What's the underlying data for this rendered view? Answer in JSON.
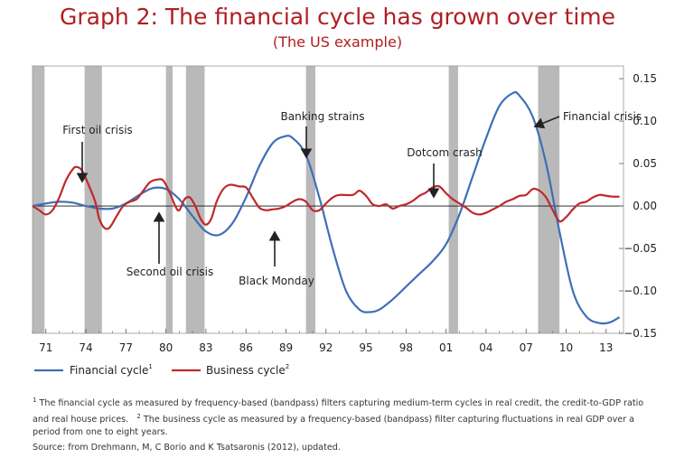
{
  "title": "Graph 2: The financial cycle has grown over time",
  "subtitle": "(The US example)",
  "chart_data": {
    "type": "line",
    "xlim": [
      1970.0,
      2014.3
    ],
    "ylim": [
      -0.15,
      0.165
    ],
    "y_ticks": [
      0.15,
      0.1,
      0.05,
      0.0,
      -0.05,
      -0.1,
      -0.15
    ],
    "y_tick_labels": [
      "0.15",
      "0.10",
      "0.05",
      "0.00",
      "−0.05",
      "−0.10",
      "−0.15"
    ],
    "x_ticks": [
      1971,
      1974,
      1977,
      1980,
      1983,
      1986,
      1989,
      1992,
      1995,
      1998,
      2001,
      2004,
      2007,
      2010,
      2013
    ],
    "x_tick_labels": [
      "71",
      "74",
      "77",
      "80",
      "83",
      "86",
      "89",
      "92",
      "95",
      "98",
      "01",
      "04",
      "07",
      "10",
      "13"
    ],
    "grid": false,
    "legend_position": "bottom-left",
    "recessions": [
      [
        1970.0,
        1970.9
      ],
      [
        1973.9,
        1975.2
      ],
      [
        1980.0,
        1980.5
      ],
      [
        1981.5,
        1982.9
      ],
      [
        1990.5,
        1991.2
      ],
      [
        2001.2,
        2001.9
      ],
      [
        2007.9,
        2009.5
      ]
    ],
    "series": [
      {
        "name": "Financial cycle",
        "footnote_mark": "1",
        "color": "#3e6fb8",
        "points": [
          [
            1970.0,
            0.0
          ],
          [
            1971.0,
            0.003
          ],
          [
            1972.0,
            0.005
          ],
          [
            1973.0,
            0.004
          ],
          [
            1974.0,
            0.0
          ],
          [
            1975.0,
            -0.003
          ],
          [
            1976.0,
            -0.003
          ],
          [
            1977.0,
            0.003
          ],
          [
            1978.0,
            0.013
          ],
          [
            1979.0,
            0.021
          ],
          [
            1980.0,
            0.02
          ],
          [
            1981.0,
            0.008
          ],
          [
            1982.0,
            -0.012
          ],
          [
            1983.0,
            -0.03
          ],
          [
            1984.0,
            -0.034
          ],
          [
            1985.0,
            -0.02
          ],
          [
            1986.0,
            0.01
          ],
          [
            1987.0,
            0.047
          ],
          [
            1988.0,
            0.074
          ],
          [
            1988.9,
            0.082
          ],
          [
            1989.5,
            0.08
          ],
          [
            1990.5,
            0.06
          ],
          [
            1991.5,
            0.01
          ],
          [
            1992.5,
            -0.05
          ],
          [
            1993.5,
            -0.1
          ],
          [
            1994.5,
            -0.122
          ],
          [
            1995.3,
            -0.125
          ],
          [
            1996.0,
            -0.122
          ],
          [
            1997.0,
            -0.11
          ],
          [
            1998.0,
            -0.095
          ],
          [
            1999.0,
            -0.08
          ],
          [
            2000.0,
            -0.065
          ],
          [
            2001.0,
            -0.045
          ],
          [
            2002.0,
            -0.01
          ],
          [
            2003.0,
            0.035
          ],
          [
            2004.0,
            0.08
          ],
          [
            2005.0,
            0.118
          ],
          [
            2006.0,
            0.133
          ],
          [
            2006.5,
            0.13
          ],
          [
            2007.5,
            0.105
          ],
          [
            2008.5,
            0.05
          ],
          [
            2009.5,
            -0.03
          ],
          [
            2010.5,
            -0.1
          ],
          [
            2011.5,
            -0.13
          ],
          [
            2012.5,
            -0.138
          ],
          [
            2013.3,
            -0.137
          ],
          [
            2014.0,
            -0.131
          ]
        ]
      },
      {
        "name": "Business cycle",
        "footnote_mark": "2",
        "color": "#c0282c",
        "points": [
          [
            1970.0,
            0.0
          ],
          [
            1970.5,
            -0.005
          ],
          [
            1971.0,
            -0.01
          ],
          [
            1971.5,
            -0.005
          ],
          [
            1972.0,
            0.01
          ],
          [
            1972.5,
            0.03
          ],
          [
            1973.0,
            0.043
          ],
          [
            1973.3,
            0.046
          ],
          [
            1973.7,
            0.042
          ],
          [
            1974.2,
            0.025
          ],
          [
            1974.7,
            0.005
          ],
          [
            1975.0,
            -0.015
          ],
          [
            1975.4,
            -0.026
          ],
          [
            1975.8,
            -0.025
          ],
          [
            1976.3,
            -0.012
          ],
          [
            1976.8,
            0.0
          ],
          [
            1977.3,
            0.005
          ],
          [
            1977.8,
            0.008
          ],
          [
            1978.3,
            0.018
          ],
          [
            1978.8,
            0.028
          ],
          [
            1979.3,
            0.031
          ],
          [
            1979.8,
            0.03
          ],
          [
            1980.3,
            0.015
          ],
          [
            1980.7,
            0.0
          ],
          [
            1981.0,
            -0.005
          ],
          [
            1981.4,
            0.008
          ],
          [
            1981.8,
            0.01
          ],
          [
            1982.2,
            0.0
          ],
          [
            1982.6,
            -0.015
          ],
          [
            1983.0,
            -0.022
          ],
          [
            1983.4,
            -0.015
          ],
          [
            1983.8,
            0.005
          ],
          [
            1984.3,
            0.02
          ],
          [
            1984.8,
            0.025
          ],
          [
            1985.5,
            0.023
          ],
          [
            1986.0,
            0.022
          ],
          [
            1986.5,
            0.01
          ],
          [
            1987.0,
            -0.002
          ],
          [
            1987.5,
            -0.005
          ],
          [
            1988.0,
            -0.004
          ],
          [
            1988.5,
            -0.003
          ],
          [
            1989.0,
            0.0
          ],
          [
            1989.5,
            0.005
          ],
          [
            1990.0,
            0.008
          ],
          [
            1990.5,
            0.005
          ],
          [
            1991.0,
            -0.005
          ],
          [
            1991.5,
            -0.005
          ],
          [
            1992.0,
            0.003
          ],
          [
            1992.5,
            0.01
          ],
          [
            1993.0,
            0.013
          ],
          [
            1994.0,
            0.013
          ],
          [
            1994.5,
            0.018
          ],
          [
            1995.0,
            0.012
          ],
          [
            1995.5,
            0.002
          ],
          [
            1996.0,
            0.0
          ],
          [
            1996.5,
            0.002
          ],
          [
            1997.0,
            -0.003
          ],
          [
            1997.5,
            0.0
          ],
          [
            1998.0,
            0.002
          ],
          [
            1998.5,
            0.006
          ],
          [
            1999.0,
            0.012
          ],
          [
            1999.5,
            0.016
          ],
          [
            2000.0,
            0.022
          ],
          [
            2000.5,
            0.023
          ],
          [
            2001.0,
            0.015
          ],
          [
            2001.5,
            0.008
          ],
          [
            2002.0,
            0.003
          ],
          [
            2002.5,
            -0.002
          ],
          [
            2003.0,
            -0.008
          ],
          [
            2003.5,
            -0.01
          ],
          [
            2004.0,
            -0.008
          ],
          [
            2004.5,
            -0.004
          ],
          [
            2005.0,
            0.0
          ],
          [
            2005.5,
            0.005
          ],
          [
            2006.0,
            0.008
          ],
          [
            2006.5,
            0.012
          ],
          [
            2007.0,
            0.013
          ],
          [
            2007.5,
            0.02
          ],
          [
            2008.0,
            0.018
          ],
          [
            2008.5,
            0.01
          ],
          [
            2009.0,
            -0.005
          ],
          [
            2009.5,
            -0.018
          ],
          [
            2010.0,
            -0.013
          ],
          [
            2010.5,
            -0.004
          ],
          [
            2011.0,
            0.003
          ],
          [
            2011.5,
            0.005
          ],
          [
            2012.0,
            0.01
          ],
          [
            2012.5,
            0.013
          ],
          [
            2013.0,
            0.012
          ],
          [
            2013.5,
            0.011
          ],
          [
            2014.0,
            0.011
          ]
        ]
      }
    ],
    "annotations": [
      {
        "text": "First oil crisis",
        "x": 1973.5,
        "y": 0.045
      },
      {
        "text": "Second oil crisis",
        "x": 1979.5,
        "y": 0.03
      },
      {
        "text": "Black Monday",
        "x": 1987.3,
        "y": -0.004
      },
      {
        "text": "Banking strains",
        "x": 1990.8,
        "y": 0.075
      },
      {
        "text": "Dotcom crash",
        "x": 2000.0,
        "y": 0.022
      },
      {
        "text": "Financial crisis",
        "x": 2006.5,
        "y": 0.118
      }
    ]
  },
  "footnote": {
    "mark1": "1",
    "text1": "The financial cycle as measured by frequency-based (bandpass) filters capturing medium-term cycles in real credit, the credit-to-GDP ratio and real house prices.",
    "mark2": "2",
    "text2": "The business cycle as measured by a frequency-based (bandpass) filter capturing fluctuations in real GDP over a period from one to eight years."
  },
  "source": "Source: from Drehmann, M, C Borio and K Tsatsaronis (2012), updated."
}
